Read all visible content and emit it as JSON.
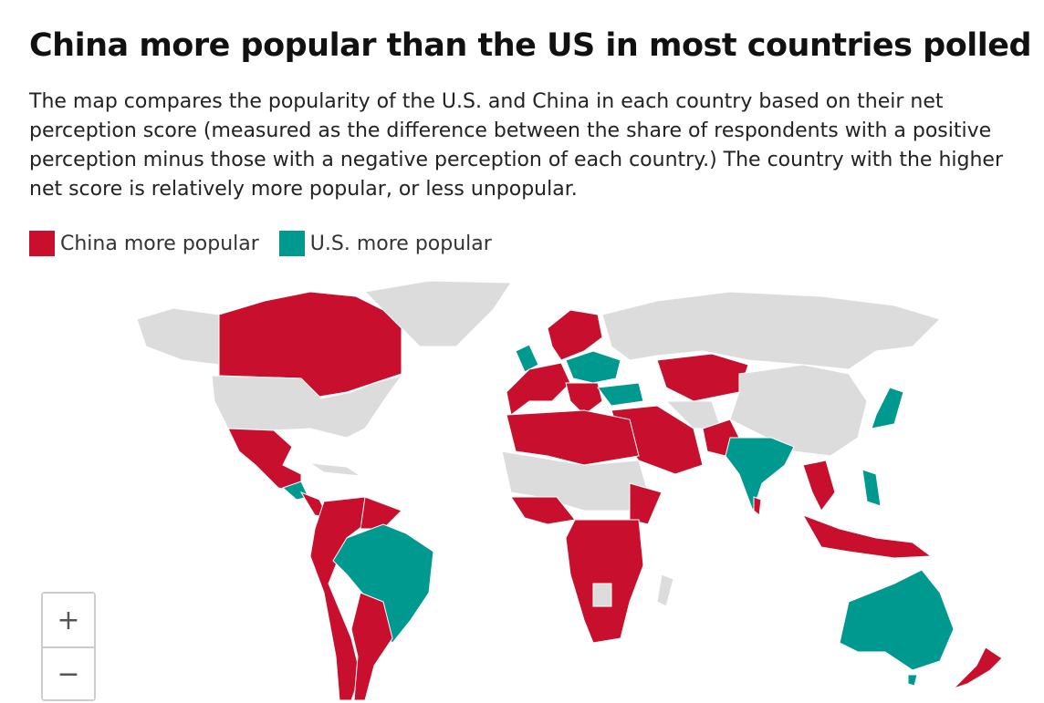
{
  "header": {
    "title": "China more popular than the US in most countries polled",
    "description": "The map compares the popularity of the U.S. and China in each country based on their net perception score (measured as the difference between the share of respondents with a positive perception minus those with a negative perception of each country.) The country with the higher net score is relatively more popular, or less unpopular."
  },
  "legend": [
    {
      "label": "China more popular",
      "color": "#c8102e"
    },
    {
      "label": "U.S. more popular",
      "color": "#00998f"
    }
  ],
  "zoom": {
    "in": "+",
    "out": "−"
  }
}
